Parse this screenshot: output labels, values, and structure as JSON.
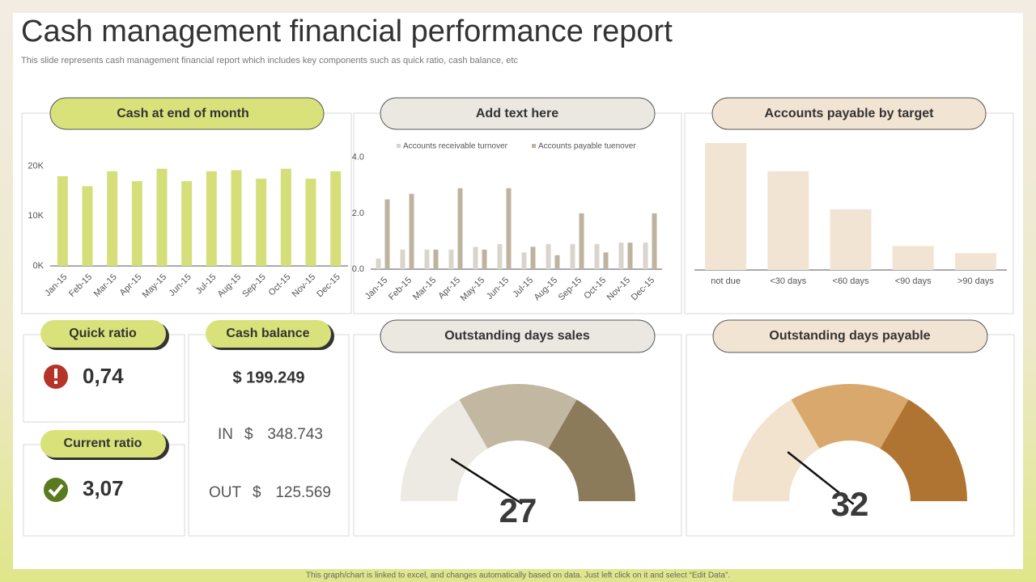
{
  "header": {
    "title": "Cash management financial performance report",
    "subtitle": "This slide represents cash management financial report which includes key components such as quick ratio, cash balance, etc"
  },
  "chart_data": [
    {
      "type": "bar",
      "title": "Cash at end of month",
      "categories": [
        "Jan-15",
        "Feb-15",
        "Mar-15",
        "Apr-15",
        "May-15",
        "Jun-15",
        "Jul-15",
        "Aug-15",
        "Sep-15",
        "Oct-15",
        "Nov-15",
        "Dec-15"
      ],
      "values": [
        18000,
        16000,
        19000,
        17000,
        19500,
        17000,
        19000,
        19200,
        17500,
        19500,
        17500,
        19000
      ],
      "color": "#d4df7a",
      "ylim": [
        0,
        24000
      ],
      "yticks": [
        {
          "value": 0,
          "label": "0K"
        },
        {
          "value": 10000,
          "label": "10K"
        },
        {
          "value": 20000,
          "label": "20K"
        }
      ]
    },
    {
      "type": "grouped_bar",
      "title": "Add text here",
      "categories": [
        "Jan-15",
        "Feb-15",
        "Mar-15",
        "Apr-15",
        "May-15",
        "Jun-15",
        "Jul-15",
        "Aug-15",
        "Sep-15",
        "Oct-15",
        "Nov-15",
        "Dec-15"
      ],
      "series": [
        {
          "name": "Accounts receivable turnover",
          "color": "#d9d5cc",
          "values": [
            0.38,
            0.7,
            0.7,
            0.7,
            0.8,
            0.9,
            0.6,
            0.9,
            0.9,
            0.9,
            0.95,
            0.95
          ]
        },
        {
          "name": "Accounts payable tuenover",
          "color": "#bdb39f",
          "values": [
            2.5,
            2.7,
            0.7,
            2.9,
            0.7,
            2.9,
            0.8,
            0.5,
            2.0,
            0.6,
            0.95,
            2.0
          ]
        }
      ],
      "ylim": [
        0,
        4.4
      ],
      "yticks": [
        {
          "value": 0,
          "label": "0.0"
        },
        {
          "value": 2,
          "label": "2.0"
        },
        {
          "value": 4,
          "label": "4.0"
        }
      ],
      "legend": "top"
    },
    {
      "type": "bar",
      "title": "Accounts payable by target",
      "categories": [
        "not due",
        "<30 days",
        "<60 days",
        "<90 days",
        ">90 days"
      ],
      "values": [
        45,
        35,
        21.5,
        8.5,
        6
      ],
      "color": "#f2e4d3",
      "ylim": [
        0,
        50
      ],
      "yticks": []
    },
    {
      "type": "gauge",
      "title": "Outstanding days sales",
      "value": 27,
      "range": [
        0,
        150
      ],
      "colors": [
        "#edeae3",
        "#c2b8a1",
        "#8c7b5a"
      ]
    },
    {
      "type": "gauge",
      "title": "Outstanding days payable",
      "value": 32,
      "range": [
        0,
        150
      ],
      "colors": [
        "#f2e3cf",
        "#d9a86c",
        "#b07432"
      ]
    }
  ],
  "cards": {
    "quick_ratio": {
      "title": "Quick ratio",
      "value": "0,74"
    },
    "current_ratio": {
      "title": "Current ratio",
      "value": "3,07"
    },
    "cash_balance": {
      "title": "Cash balance",
      "total": "$ 199.249",
      "rows": [
        [
          "IN",
          "$",
          "348.743"
        ],
        [
          "OUT",
          "$",
          "125.569"
        ]
      ]
    }
  },
  "footer": "This graph/chart is linked to excel, and changes automatically based on data. Just left click on it and select “Edit Data”."
}
